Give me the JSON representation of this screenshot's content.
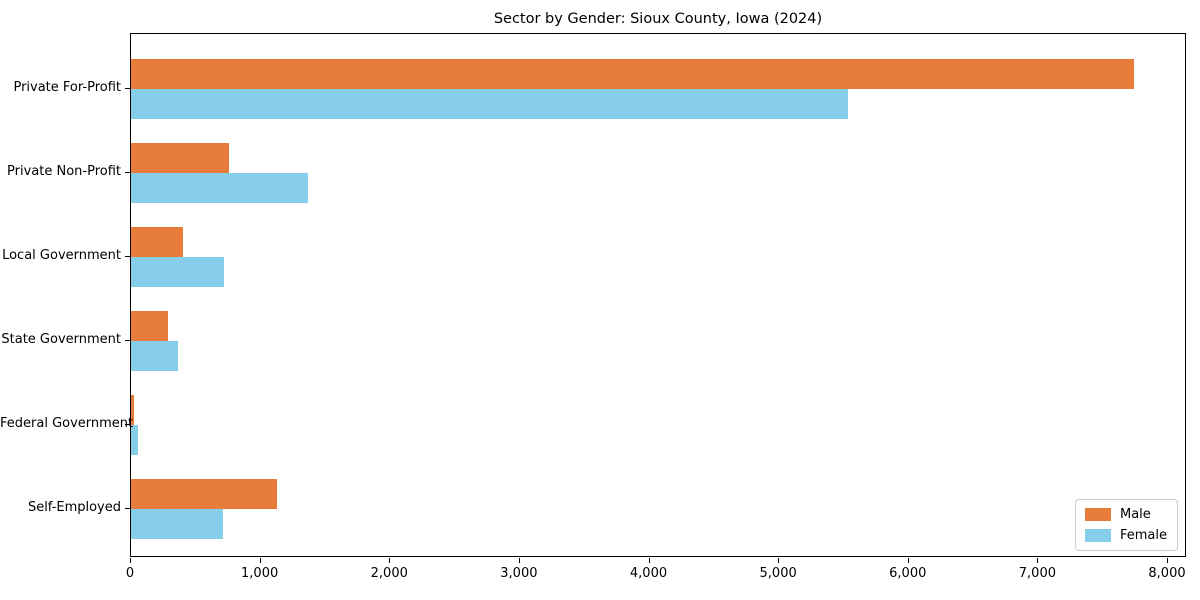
{
  "title": "Sector by Gender: Sioux County, Iowa (2024)",
  "chart_data": {
    "type": "bar",
    "orientation": "horizontal",
    "title": "Sector by Gender: Sioux County, Iowa (2024)",
    "categories": [
      "Private For-Profit",
      "Private Non-Profit",
      "Local Government",
      "State Government",
      "Federal Government",
      "Self-Employed"
    ],
    "series": [
      {
        "name": "Male",
        "color": "#E87D3B",
        "values": [
          7740,
          755,
          400,
          285,
          25,
          1130
        ]
      },
      {
        "name": "Female",
        "color": "#87CEEB",
        "values": [
          5530,
          1365,
          715,
          360,
          55,
          710
        ]
      }
    ],
    "xlabel": "",
    "ylabel": "",
    "xlim": [
      0,
      8145
    ],
    "x_ticks": [
      0,
      1000,
      2000,
      3000,
      4000,
      5000,
      6000,
      7000,
      8000
    ],
    "x_tick_labels": [
      "0",
      "1,000",
      "2,000",
      "3,000",
      "4,000",
      "5,000",
      "6,000",
      "7,000",
      "8,000"
    ],
    "grid": false,
    "legend_position": "lower right"
  }
}
